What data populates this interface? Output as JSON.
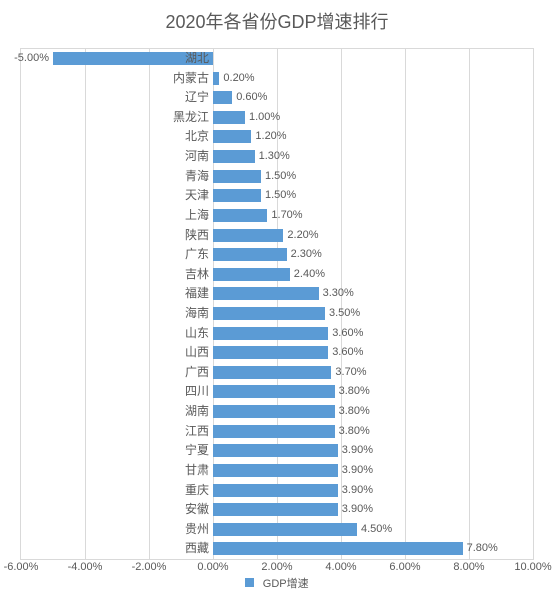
{
  "chart": {
    "type": "bar-horizontal",
    "title": "2020年各省份GDP增速排行",
    "title_fontsize": 18,
    "title_color": "#595959",
    "background_color": "#ffffff",
    "plot_border_color": "#d9d9d9",
    "grid_color": "#d9d9d9",
    "bar_color": "#5b9bd5",
    "label_color": "#595959",
    "label_fontsize": 11,
    "cat_label_fontsize": 12,
    "legend_label": "GDP增速",
    "xlim_min": -6.0,
    "xlim_max": 10.0,
    "xtick_step": 2.0,
    "xticks": [
      "-6.00%",
      "-4.00%",
      "-2.00%",
      "0.00%",
      "2.00%",
      "4.00%",
      "6.00%",
      "8.00%",
      "10.00%"
    ],
    "data": [
      {
        "name": "湖北",
        "value": -5.0,
        "label": "-5.00%"
      },
      {
        "name": "内蒙古",
        "value": 0.2,
        "label": "0.20%"
      },
      {
        "name": "辽宁",
        "value": 0.6,
        "label": "0.60%"
      },
      {
        "name": "黑龙江",
        "value": 1.0,
        "label": "1.00%"
      },
      {
        "name": "北京",
        "value": 1.2,
        "label": "1.20%"
      },
      {
        "name": "河南",
        "value": 1.3,
        "label": "1.30%"
      },
      {
        "name": "青海",
        "value": 1.5,
        "label": "1.50%"
      },
      {
        "name": "天津",
        "value": 1.5,
        "label": "1.50%"
      },
      {
        "name": "上海",
        "value": 1.7,
        "label": "1.70%"
      },
      {
        "name": "陕西",
        "value": 2.2,
        "label": "2.20%"
      },
      {
        "name": "广东",
        "value": 2.3,
        "label": "2.30%"
      },
      {
        "name": "吉林",
        "value": 2.4,
        "label": "2.40%"
      },
      {
        "name": "福建",
        "value": 3.3,
        "label": "3.30%"
      },
      {
        "name": "海南",
        "value": 3.5,
        "label": "3.50%"
      },
      {
        "name": "山东",
        "value": 3.6,
        "label": "3.60%"
      },
      {
        "name": "山西",
        "value": 3.6,
        "label": "3.60%"
      },
      {
        "name": "广西",
        "value": 3.7,
        "label": "3.70%"
      },
      {
        "name": "四川",
        "value": 3.8,
        "label": "3.80%"
      },
      {
        "name": "湖南",
        "value": 3.8,
        "label": "3.80%"
      },
      {
        "name": "江西",
        "value": 3.8,
        "label": "3.80%"
      },
      {
        "name": "宁夏",
        "value": 3.9,
        "label": "3.90%"
      },
      {
        "name": "甘肃",
        "value": 3.9,
        "label": "3.90%"
      },
      {
        "name": "重庆",
        "value": 3.9,
        "label": "3.90%"
      },
      {
        "name": "安徽",
        "value": 3.9,
        "label": "3.90%"
      },
      {
        "name": "贵州",
        "value": 4.5,
        "label": "4.50%"
      },
      {
        "name": "西藏",
        "value": 7.8,
        "label": "7.80%"
      }
    ]
  }
}
